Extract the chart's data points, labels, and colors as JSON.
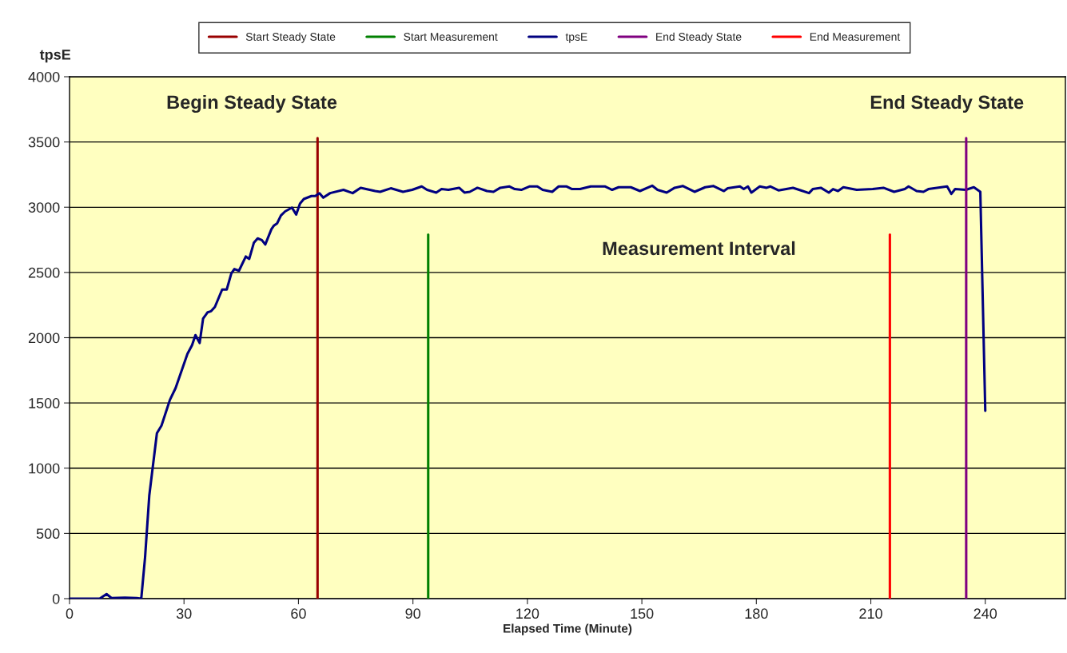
{
  "chart_data": {
    "type": "line",
    "xlabel": "Elapsed Time (Minute)",
    "ylabel": "tpsE",
    "xlim": [
      0,
      261
    ],
    "xticks": [
      0,
      30,
      60,
      90,
      120,
      150,
      180,
      210,
      240
    ],
    "ylim": [
      0,
      4000
    ],
    "yticks": [
      0,
      500,
      1000,
      1500,
      2000,
      2500,
      3000,
      3500,
      4000
    ],
    "grid": "y",
    "legend": "top",
    "marker": "none",
    "line_style": "solid",
    "series": [
      {
        "name": "Start Steady State",
        "color": "#990000",
        "x": [
          65,
          65
        ],
        "values": [
          0,
          3530
        ]
      },
      {
        "name": "Start Measurement",
        "color": "#008000",
        "x": [
          94,
          94
        ],
        "values": [
          0,
          2790
        ]
      },
      {
        "name": "tpsE",
        "color": "#000080",
        "x": [
          0,
          7.9,
          9.7,
          11,
          14.5,
          17.6,
          18.8,
          19.8,
          20.9,
          22.9,
          24.1,
          26.3,
          27.8,
          30.9,
          32.1,
          33.0,
          34.1,
          35.0,
          36.2,
          37.1,
          38.1,
          40.0,
          41.2,
          42.4,
          43.2,
          44.4,
          46.2,
          47.1,
          48.3,
          49.3,
          50.4,
          51.3,
          52.9,
          53.5,
          54.4,
          55.4,
          56.5,
          58.3,
          59.4,
          60.4,
          61.4,
          63.4,
          64.4,
          65.5,
          66.5,
          68.3,
          71.8,
          74.2,
          76.3,
          80.1,
          81.4,
          84.2,
          87.4,
          89.8,
          92.3,
          93.7,
          96.1,
          97.5,
          99.3,
          102.1,
          103.5,
          104.9,
          106.9,
          109.4,
          111.1,
          112.9,
          115.3,
          116.7,
          118.4,
          120.5,
          122.6,
          124.0,
          126.5,
          128.2,
          130.3,
          131.7,
          133.8,
          136.6,
          140.4,
          142.2,
          143.9,
          147.1,
          149.5,
          152.7,
          154.1,
          156.5,
          158.6,
          160.7,
          163.8,
          166.6,
          168.7,
          171.5,
          172.5,
          175.7,
          176.7,
          177.8,
          178.7,
          180.9,
          182.7,
          183.7,
          185.8,
          189.6,
          191.7,
          193.8,
          194.8,
          196.9,
          199.0,
          200.1,
          201.4,
          202.8,
          206.3,
          210.5,
          213.3,
          216.1,
          218.9,
          219.9,
          222.0,
          223.8,
          225.1,
          230.0,
          231.1,
          232.1,
          234.9,
          237.0,
          238.7,
          240.0
        ],
        "values": [
          0,
          0,
          35,
          5,
          8,
          5,
          0,
          318,
          790,
          1268,
          1326,
          1523,
          1614,
          1876,
          1942,
          2020,
          1960,
          2146,
          2195,
          2203,
          2236,
          2369,
          2369,
          2492,
          2526,
          2513,
          2622,
          2604,
          2727,
          2761,
          2748,
          2714,
          2831,
          2857,
          2876,
          2936,
          2968,
          2997,
          2944,
          3028,
          3063,
          3086,
          3086,
          3107,
          3073,
          3108,
          3133,
          3108,
          3149,
          3124,
          3118,
          3145,
          3118,
          3133,
          3159,
          3133,
          3112,
          3139,
          3133,
          3149,
          3112,
          3118,
          3149,
          3124,
          3118,
          3149,
          3159,
          3139,
          3133,
          3159,
          3159,
          3133,
          3118,
          3159,
          3159,
          3139,
          3139,
          3159,
          3159,
          3133,
          3153,
          3153,
          3124,
          3165,
          3133,
          3112,
          3149,
          3163,
          3118,
          3153,
          3163,
          3124,
          3145,
          3159,
          3139,
          3159,
          3112,
          3159,
          3149,
          3159,
          3129,
          3149,
          3129,
          3108,
          3139,
          3149,
          3112,
          3139,
          3124,
          3153,
          3133,
          3139,
          3149,
          3118,
          3139,
          3159,
          3124,
          3118,
          3139,
          3159,
          3102,
          3139,
          3133,
          3153,
          3118,
          1440
        ]
      },
      {
        "name": "End Steady State",
        "color": "#800080",
        "x": [
          235,
          235
        ],
        "values": [
          0,
          3530
        ]
      },
      {
        "name": "End Measurement",
        "color": "#ff0000",
        "x": [
          215,
          215
        ],
        "values": [
          0,
          2790
        ]
      }
    ],
    "annotations": [
      "Begin Steady State",
      "End Steady State",
      "Measurement Interval"
    ]
  }
}
